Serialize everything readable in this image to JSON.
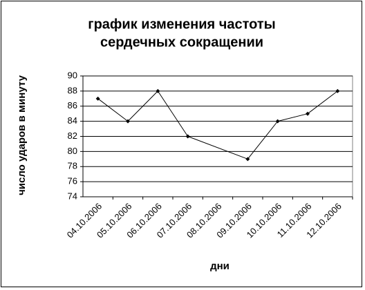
{
  "chart_data": {
    "type": "line",
    "title": [
      "график изменения частоты",
      "сердечных сокращении"
    ],
    "x_label": "дни",
    "y_label": "число ударов в минуту",
    "categories": [
      "04.10.2006",
      "05.10.2006",
      "06.10.2006",
      "07.10.2006",
      "08.10.2006",
      "09.10.2006",
      "10.10.2006",
      "11.10.2006",
      "12.10.2006"
    ],
    "values": [
      87,
      84,
      88,
      82,
      null,
      79,
      84,
      85,
      88
    ],
    "color": "#000000",
    "ylim": [
      74,
      90
    ],
    "yticks": [
      74,
      76,
      78,
      80,
      82,
      84,
      86,
      88,
      90
    ],
    "grid": true
  }
}
